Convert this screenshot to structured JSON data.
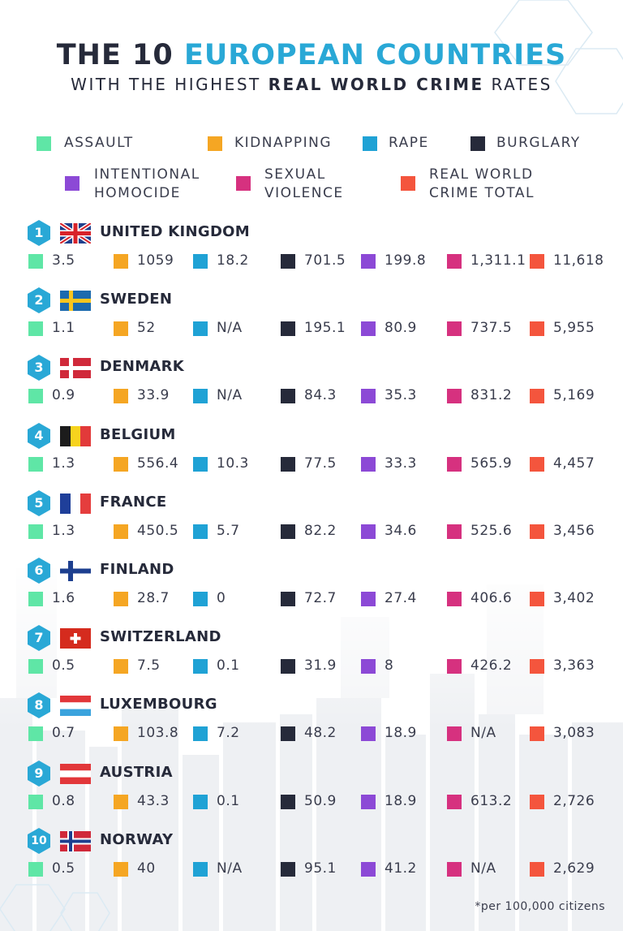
{
  "title": {
    "line1_a": "THE 10 ",
    "line1_b": "EUROPEAN COUNTRIES",
    "line2_a": "WITH THE HIGHEST ",
    "line2_b": "REAL WORLD CRIME",
    "line2_c": " RATES"
  },
  "colors": {
    "assault": "#5fe6a6",
    "kidnapping": "#f5a623",
    "rape": "#1fa2d5",
    "burglary": "#262a3a",
    "homicide": "#8c49d6",
    "sexual_violence": "#d6317f",
    "total": "#f4553d",
    "badge": "#29a8d6",
    "title_accent": "#29a8d6"
  },
  "legend": [
    {
      "key": "assault",
      "line1": "ASSAULT",
      "line2": ""
    },
    {
      "key": "kidnapping",
      "line1": "KIDNAPPING",
      "line2": ""
    },
    {
      "key": "rape",
      "line1": "RAPE",
      "line2": ""
    },
    {
      "key": "burglary",
      "line1": "BURGLARY",
      "line2": ""
    },
    {
      "key": "homicide",
      "line1": "INTENTIONAL",
      "line2": "HOMOCIDE"
    },
    {
      "key": "sexual_violence",
      "line1": "SEXUAL",
      "line2": "VIOLENCE"
    },
    {
      "key": "total",
      "line1": "REAL WORLD",
      "line2": "CRIME TOTAL"
    }
  ],
  "chart_data": {
    "type": "table",
    "title": "THE 10 EUROPEAN COUNTRIES WITH THE HIGHEST REAL WORLD CRIME RATES",
    "columns": [
      "ASSAULT",
      "KIDNAPPING",
      "RAPE",
      "BURGLARY",
      "INTENTIONAL HOMOCIDE",
      "SEXUAL VIOLENCE",
      "REAL WORLD CRIME TOTAL"
    ],
    "rows": [
      {
        "rank": "1",
        "country": "UNITED KINGDOM",
        "flag": "uk",
        "values": [
          "3.5",
          "1059",
          "18.2",
          "701.5",
          "199.8",
          "1,311.1",
          "11,618"
        ]
      },
      {
        "rank": "2",
        "country": "SWEDEN",
        "flag": "sweden",
        "values": [
          "1.1",
          "52",
          "N/A",
          "195.1",
          "80.9",
          "737.5",
          "5,955"
        ]
      },
      {
        "rank": "3",
        "country": "DENMARK",
        "flag": "denmark",
        "values": [
          "0.9",
          "33.9",
          "N/A",
          "84.3",
          "35.3",
          "831.2",
          "5,169"
        ]
      },
      {
        "rank": "4",
        "country": "BELGIUM",
        "flag": "belgium",
        "values": [
          "1.3",
          "556.4",
          "10.3",
          "77.5",
          "33.3",
          "565.9",
          "4,457"
        ]
      },
      {
        "rank": "5",
        "country": "FRANCE",
        "flag": "france",
        "values": [
          "1.3",
          "450.5",
          "5.7",
          "82.2",
          "34.6",
          "525.6",
          "3,456"
        ]
      },
      {
        "rank": "6",
        "country": "FINLAND",
        "flag": "finland",
        "values": [
          "1.6",
          "28.7",
          "0",
          "72.7",
          "27.4",
          "406.6",
          "3,402"
        ]
      },
      {
        "rank": "7",
        "country": "SWITZERLAND",
        "flag": "switzerland",
        "values": [
          "0.5",
          "7.5",
          "0.1",
          "31.9",
          "8",
          "426.2",
          "3,363"
        ]
      },
      {
        "rank": "8",
        "country": "LUXEMBOURG",
        "flag": "luxembourg",
        "values": [
          "0.7",
          "103.8",
          "7.2",
          "48.2",
          "18.9",
          "N/A",
          "3,083"
        ]
      },
      {
        "rank": "9",
        "country": "AUSTRIA",
        "flag": "austria",
        "values": [
          "0.8",
          "43.3",
          "0.1",
          "50.9",
          "18.9",
          "613.2",
          "2,726"
        ]
      },
      {
        "rank": "10",
        "country": "NORWAY",
        "flag": "norway",
        "values": [
          "0.5",
          "40",
          "N/A",
          "95.1",
          "41.2",
          "N/A",
          "2,629"
        ]
      }
    ]
  },
  "footnote": "*per 100,000 citizens"
}
